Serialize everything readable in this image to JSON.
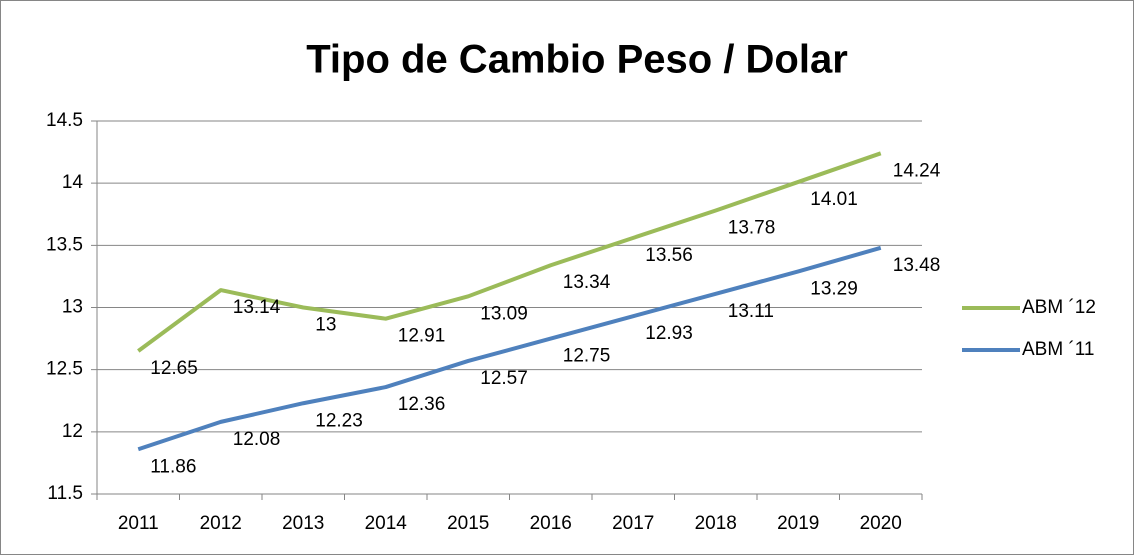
{
  "chart_data": {
    "type": "line",
    "title": "Tipo de Cambio Peso / Dolar",
    "categories": [
      "2011",
      "2012",
      "2013",
      "2014",
      "2015",
      "2016",
      "2017",
      "2018",
      "2019",
      "2020"
    ],
    "series": [
      {
        "name": "ABM ´12",
        "color": "#9bbb59",
        "values": [
          12.65,
          13.14,
          13,
          12.91,
          13.09,
          13.34,
          13.56,
          13.78,
          14.01,
          14.24
        ]
      },
      {
        "name": "ABM ´11",
        "color": "#4f81bd",
        "values": [
          11.86,
          12.08,
          12.23,
          12.36,
          12.57,
          12.75,
          12.93,
          13.11,
          13.29,
          13.48
        ]
      }
    ],
    "ylim": [
      11.5,
      14.5
    ],
    "yticks": [
      11.5,
      12,
      12.5,
      13,
      13.5,
      14,
      14.5
    ],
    "grid": true,
    "legend": "right"
  }
}
